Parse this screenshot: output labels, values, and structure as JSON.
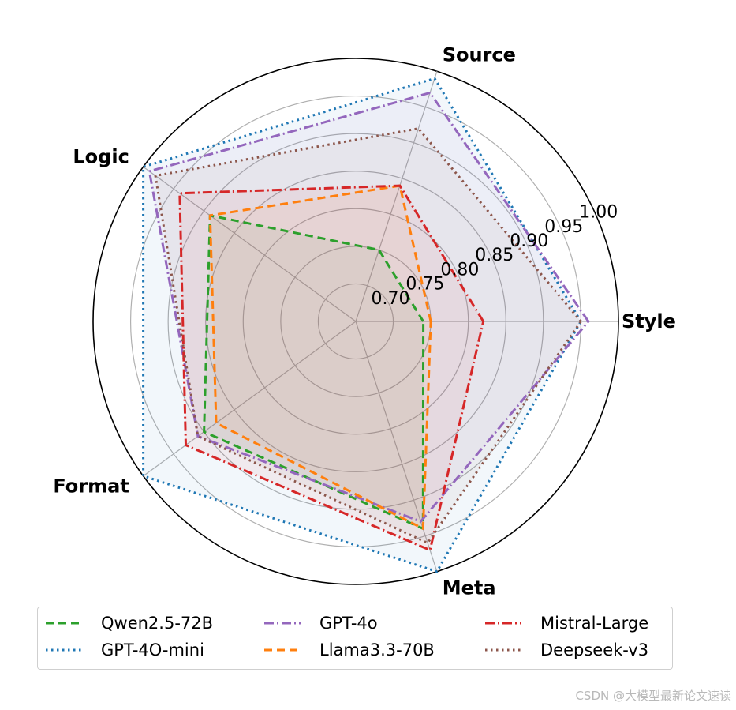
{
  "chart_data": {
    "type": "radar",
    "axes": [
      "Style",
      "Source",
      "Logic",
      "Format",
      "Meta"
    ],
    "rlim": [
      0.65,
      1.0
    ],
    "rticks": [
      0.7,
      0.75,
      0.8,
      0.85,
      0.9,
      0.95,
      1.0
    ],
    "rtick_labels": [
      "0.70",
      "0.75",
      "0.80",
      "0.85",
      "0.90",
      "0.95",
      "1.00"
    ],
    "grid": true,
    "legend_position": "bottom",
    "series": [
      {
        "name": "Qwen2.5-72B",
        "values": [
          0.74,
          0.75,
          0.89,
          0.9,
          0.94
        ],
        "color": "#2ca02c",
        "dash": "10,6"
      },
      {
        "name": "GPT-4O-mini",
        "values": [
          0.95,
          0.99,
          1.0,
          1.0,
          1.0
        ],
        "color": "#1f77b4",
        "dash": "2.5,4.5"
      },
      {
        "name": "GPT-4o",
        "values": [
          0.96,
          0.97,
          0.99,
          0.91,
          0.93
        ],
        "color": "#9467bd",
        "dash": "12,4,2,4"
      },
      {
        "name": "Llama3.3-70B",
        "values": [
          0.75,
          0.84,
          0.89,
          0.88,
          0.94
        ],
        "color": "#ff7f0e",
        "dash": "10,6"
      },
      {
        "name": "Mistral-Large",
        "values": [
          0.82,
          0.84,
          0.94,
          0.93,
          0.97
        ],
        "color": "#d62728",
        "dash": "12,4,2,4"
      },
      {
        "name": "Deepseek-v3",
        "values": [
          0.95,
          0.92,
          0.98,
          0.91,
          0.96
        ],
        "color": "#8c564b",
        "dash": "2.5,4.5"
      }
    ]
  },
  "watermark": "CSDN @大模型最新论文速读"
}
